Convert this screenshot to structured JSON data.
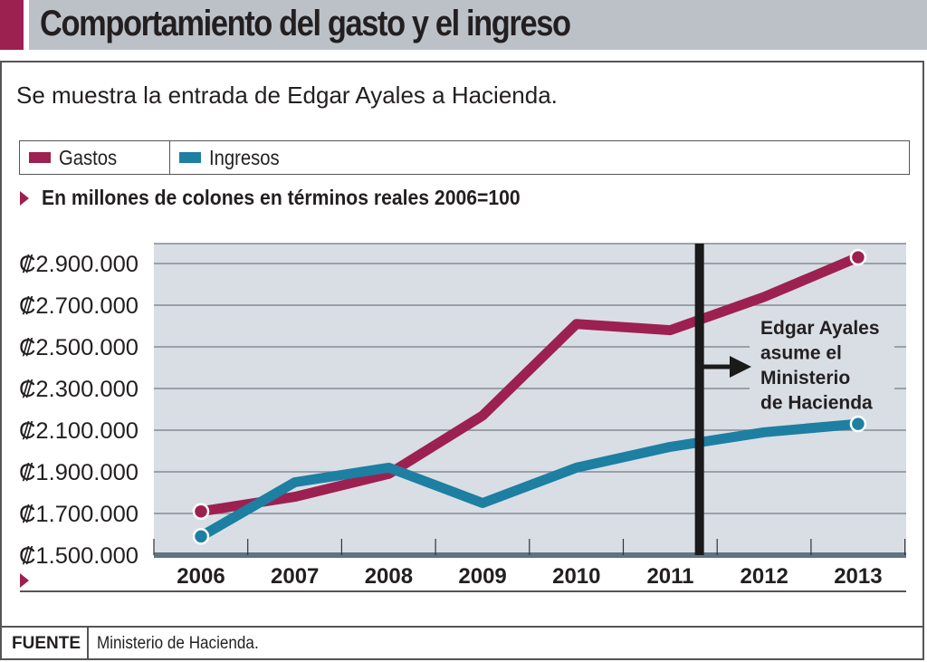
{
  "header": {
    "title": "Comportamiento del gasto y el ingreso",
    "subtitle": "Se muestra la entrada de Edgar Ayales a Hacienda."
  },
  "legend": {
    "items": [
      {
        "label": "Gastos",
        "color": "#9c2150"
      },
      {
        "label": "Ingresos",
        "color": "#1d7fa1"
      }
    ]
  },
  "unit_note": "En millones de colones en términos reales 2006=100",
  "source": {
    "label": "FUENTE",
    "text": "Ministerio de Hacienda."
  },
  "chart_data": {
    "type": "line",
    "title": "Comportamiento del gasto y el ingreso",
    "xlabel": "",
    "ylabel": "En millones de colones en términos reales 2006=100",
    "x": [
      "2006",
      "2007",
      "2008",
      "2009",
      "2010",
      "2011",
      "2012",
      "2013"
    ],
    "ylim": [
      1500000,
      3000000
    ],
    "yticks": [
      1500000,
      1700000,
      1900000,
      2100000,
      2300000,
      2500000,
      2700000,
      2900000
    ],
    "ytick_labels": [
      "₡1.500.000",
      "₡1.700.000",
      "₡1.900.000",
      "₡2.100.000",
      "₡2.300.000",
      "₡2.500.000",
      "₡2.700.000",
      "₡2.900.000"
    ],
    "grid": true,
    "legend_position": "top",
    "series": [
      {
        "name": "Gastos",
        "color": "#9c2150",
        "values": [
          1710000,
          1780000,
          1890000,
          2170000,
          2610000,
          2580000,
          2740000,
          2930000
        ]
      },
      {
        "name": "Ingresos",
        "color": "#1d7fa1",
        "values": [
          1590000,
          1850000,
          1920000,
          1750000,
          1920000,
          2020000,
          2090000,
          2130000
        ]
      }
    ],
    "annotation": {
      "x_position_year": 2011.31,
      "lines": [
        "Edgar Ayales",
        "asume el",
        "Ministerio",
        "de Hacienda"
      ]
    },
    "colors": {
      "plot_background": "#d9dee5",
      "gridline": "#868c93",
      "axis_bar": "#5f7384",
      "marker_line": "#1a1a1a"
    }
  }
}
